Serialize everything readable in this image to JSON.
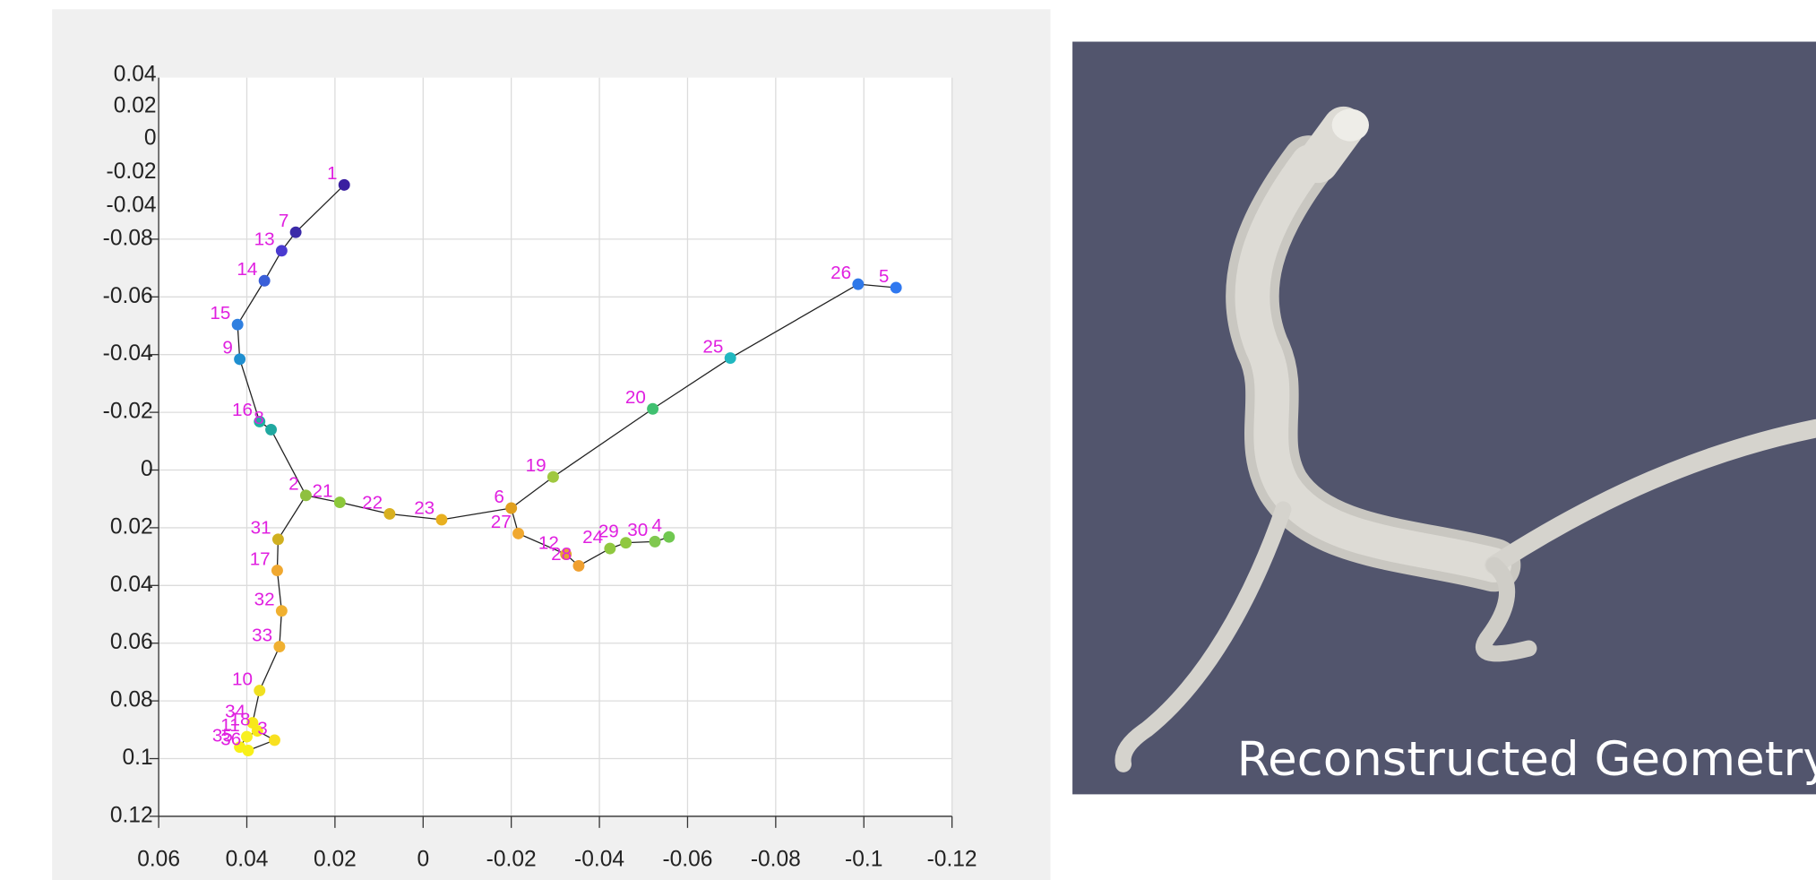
{
  "chart_data": {
    "type": "scatter",
    "labels": [
      "1",
      "7",
      "13",
      "14",
      "15",
      "9",
      "16",
      "8",
      "2",
      "21",
      "22",
      "23",
      "6",
      "19",
      "20",
      "25",
      "26",
      "5",
      "27",
      "12",
      "28",
      "24",
      "29",
      "30",
      "4",
      "31",
      "17",
      "32",
      "33",
      "10",
      "34",
      "18",
      "3",
      "11",
      "35",
      "36"
    ],
    "x": [
      0.0179,
      0.0289,
      0.0321,
      0.036,
      0.0421,
      0.0416,
      0.0371,
      0.0345,
      0.0266,
      0.0189,
      0.0076,
      -0.0042,
      -0.02,
      -0.0295,
      -0.0521,
      -0.0697,
      -0.0987,
      -0.1073,
      -0.0216,
      -0.0324,
      -0.0353,
      -0.0424,
      -0.046,
      -0.0526,
      -0.0558,
      0.0329,
      0.0331,
      0.0321,
      0.0326,
      0.0371,
      0.0387,
      0.0376,
      0.0337,
      0.04,
      0.0416,
      0.0397
    ],
    "y": [
      -0.0988,
      -0.0824,
      -0.076,
      -0.0656,
      -0.0504,
      -0.0384,
      -0.0168,
      -0.014,
      0.0088,
      0.0112,
      0.0152,
      0.0172,
      0.0132,
      0.0024,
      -0.0212,
      -0.0388,
      -0.0644,
      -0.0632,
      0.022,
      0.0292,
      0.0332,
      0.0272,
      0.0252,
      0.0248,
      0.0232,
      0.024,
      0.0348,
      0.0488,
      0.0612,
      0.0764,
      0.0876,
      0.0904,
      0.0936,
      0.0924,
      0.096,
      0.0972
    ],
    "colors": [
      "#3a1fa0",
      "#3b2aa8",
      "#4a3ad0",
      "#3a5fd8",
      "#2f7fe0",
      "#1f8fd0",
      "#20b0a0",
      "#20a8a0",
      "#8fc040",
      "#8cc83a",
      "#d8b020",
      "#e8b020",
      "#e0a020",
      "#a0c840",
      "#40c070",
      "#20b8c0",
      "#2f78e8",
      "#2f78f0",
      "#f0a830",
      "#e8a030",
      "#f0a030",
      "#90c840",
      "#90c840",
      "#80c850",
      "#70c850",
      "#d0b020",
      "#f0a830",
      "#f0b030",
      "#f0b030",
      "#f0e020",
      "#f8e818",
      "#f8e818",
      "#f8e020",
      "#f8f020",
      "#f8f018",
      "#f8f018"
    ],
    "edges": [
      [
        "1",
        "7"
      ],
      [
        "7",
        "13"
      ],
      [
        "13",
        "14"
      ],
      [
        "14",
        "15"
      ],
      [
        "15",
        "9"
      ],
      [
        "9",
        "16"
      ],
      [
        "16",
        "8"
      ],
      [
        "8",
        "2"
      ],
      [
        "2",
        "21"
      ],
      [
        "21",
        "22"
      ],
      [
        "22",
        "23"
      ],
      [
        "23",
        "6"
      ],
      [
        "6",
        "19"
      ],
      [
        "19",
        "20"
      ],
      [
        "20",
        "25"
      ],
      [
        "25",
        "26"
      ],
      [
        "26",
        "5"
      ],
      [
        "6",
        "27"
      ],
      [
        "27",
        "12"
      ],
      [
        "12",
        "28"
      ],
      [
        "28",
        "24"
      ],
      [
        "24",
        "29"
      ],
      [
        "29",
        "30"
      ],
      [
        "30",
        "4"
      ],
      [
        "2",
        "31"
      ],
      [
        "31",
        "17"
      ],
      [
        "17",
        "32"
      ],
      [
        "32",
        "33"
      ],
      [
        "33",
        "10"
      ],
      [
        "10",
        "34"
      ],
      [
        "34",
        "18"
      ],
      [
        "18",
        "3"
      ],
      [
        "3",
        "36"
      ],
      [
        "36",
        "35"
      ],
      [
        "35",
        "11"
      ],
      [
        "11",
        "18"
      ]
    ],
    "xlim": [
      0.06,
      -0.12
    ],
    "xticks": [
      0.06,
      0.04,
      0.02,
      0,
      -0.02,
      -0.04,
      -0.06,
      -0.08,
      -0.1,
      -0.12
    ],
    "ylim": [
      -0.136,
      0.12
    ],
    "y_reversed": true,
    "yticks": [
      -0.08,
      -0.06,
      -0.04,
      -0.02,
      0,
      0.02,
      0.04,
      0.06,
      0.08,
      0.1,
      0.12
    ],
    "overlay_labels": [
      "0.04",
      "0.02",
      "0",
      "-0.02",
      "-0.04"
    ],
    "grid": true
  },
  "render": {
    "caption": "Reconstructed Geometry"
  }
}
